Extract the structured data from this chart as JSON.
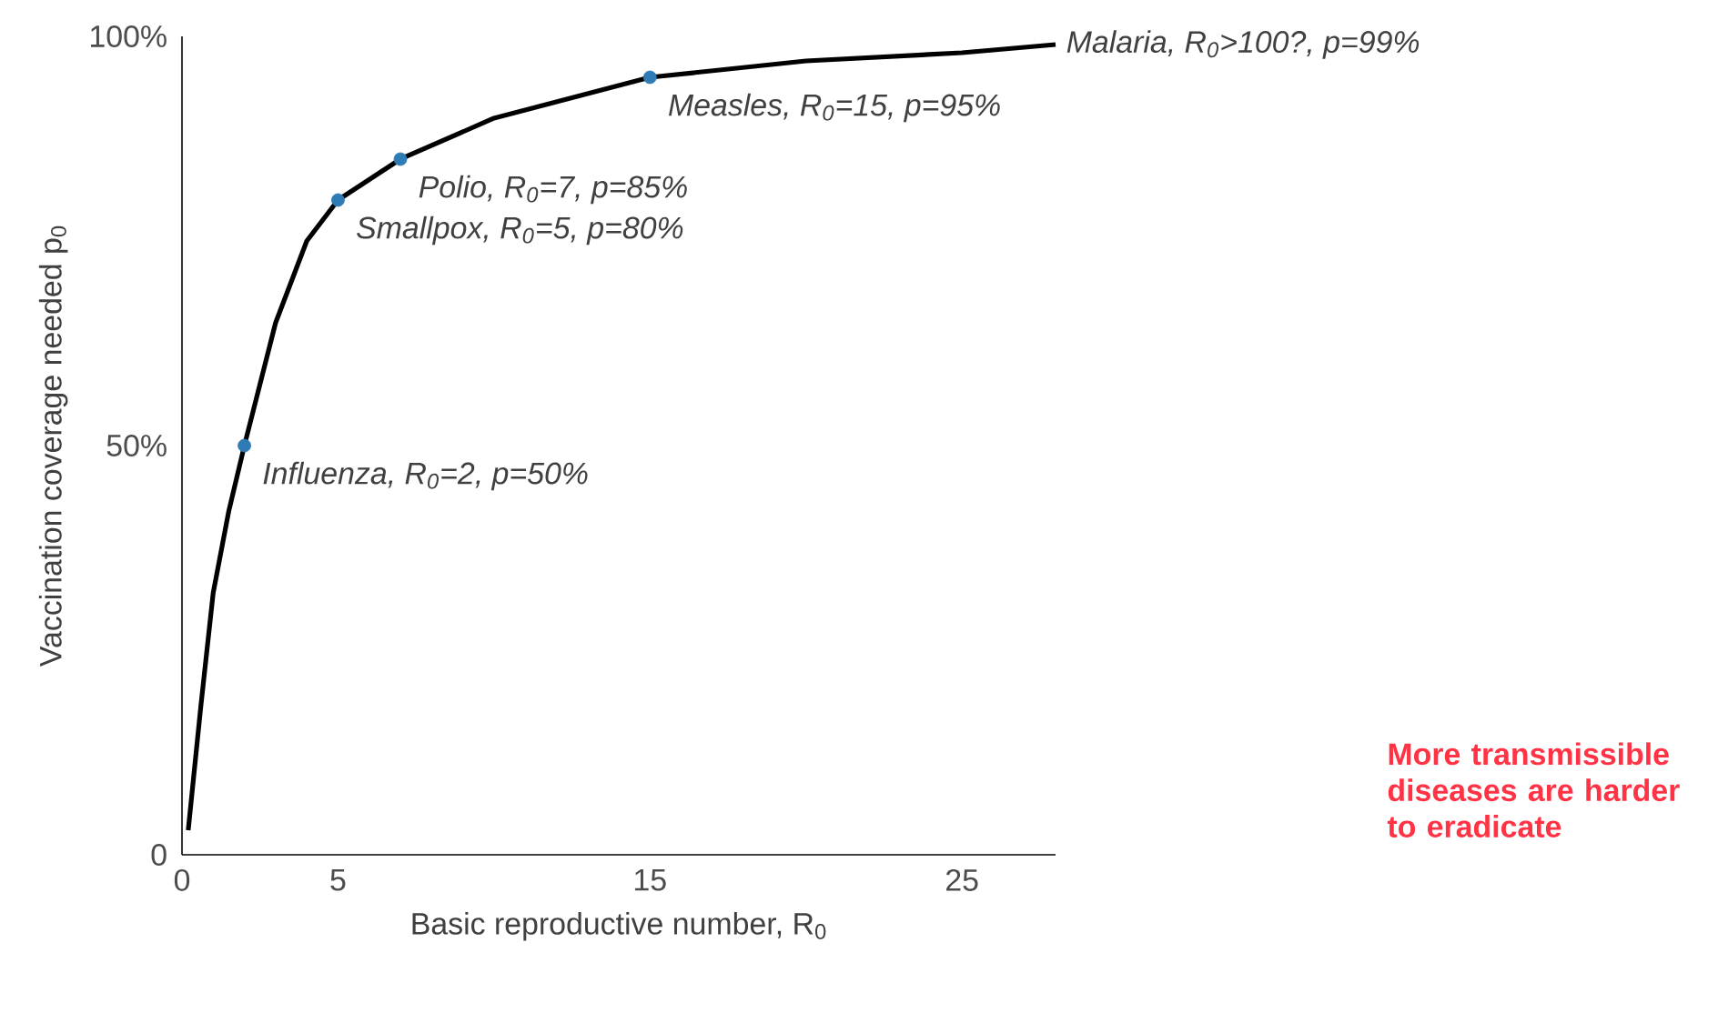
{
  "chart_data": {
    "type": "line",
    "xlabel": "Basic reproductive number, R$_{0}$",
    "ylabel": "Vaccination coverage needed p$_{0}$",
    "xlim": [
      0,
      28
    ],
    "ylim": [
      0,
      100
    ],
    "xticks": [
      0,
      5,
      15,
      25
    ],
    "yticks": [
      {
        "value": 0,
        "label": "0"
      },
      {
        "value": 50,
        "label": "50%"
      },
      {
        "value": 100,
        "label": "100%"
      }
    ],
    "series": [
      {
        "type": "line",
        "color": "#000000",
        "marker": "none",
        "line_style": "solid",
        "x": [
          0.2,
          0.6,
          1.0,
          1.5,
          2,
          3,
          4,
          5,
          7,
          10,
          15,
          20,
          25,
          28
        ],
        "values": [
          3,
          18,
          32,
          42,
          50,
          65,
          75,
          80,
          85,
          90,
          95,
          97,
          98,
          99
        ]
      },
      {
        "type": "scatter",
        "color": "#2f7bb5",
        "marker": "circle",
        "x": [
          2,
          5,
          7,
          15
        ],
        "values": [
          50,
          80,
          85,
          95
        ]
      }
    ],
    "annotations": [
      {
        "text": "Influenza, R$_{0}$=2, p=50%",
        "x": 2,
        "y": 50
      },
      {
        "text": "Smallpox, R$_{0}$=5, p=80%",
        "x": 5,
        "y": 80
      },
      {
        "text": "Polio, R$_{0}$=7, p=85%",
        "x": 7,
        "y": 85
      },
      {
        "text": "Measles, R$_{0}$=15, p=95%",
        "x": 15,
        "y": 95
      },
      {
        "text": "Malaria, R$_{0}$>100?, p=99%",
        "x": 28,
        "y": 99
      },
      "More transmissible diseases are harder to eradicate"
    ]
  }
}
